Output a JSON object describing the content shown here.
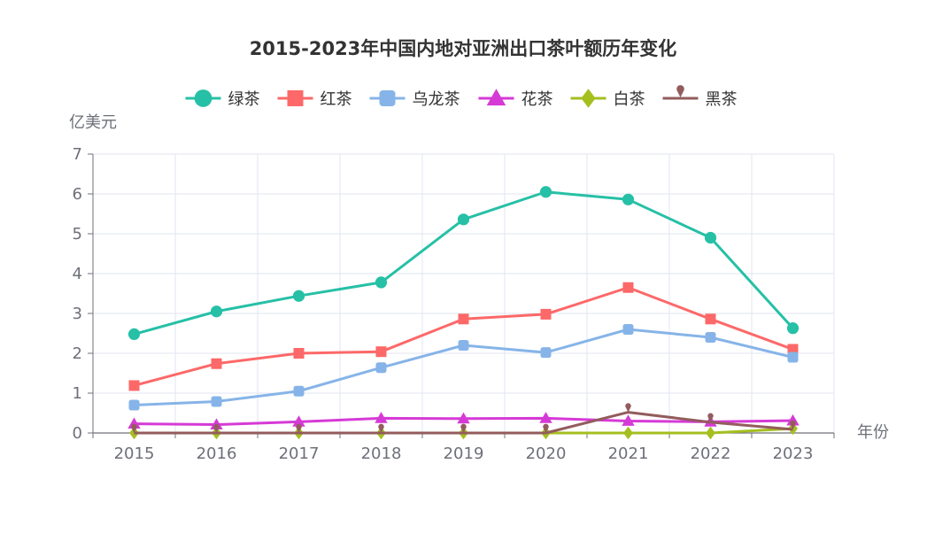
{
  "chart_data": {
    "type": "line",
    "title": "2015-2023年中国内地对亚洲出口茶叶额历年变化",
    "ylabel": "亿美元",
    "xlabel": "年份",
    "categories": [
      "2015",
      "2016",
      "2017",
      "2018",
      "2019",
      "2020",
      "2021",
      "2022",
      "2023"
    ],
    "ylim": [
      0,
      7
    ],
    "yticks": [
      0,
      1,
      2,
      3,
      4,
      5,
      6,
      7
    ],
    "grid": true,
    "legend_position": "top-center",
    "series": [
      {
        "name": "绿茶",
        "color": "#26c0a6",
        "marker": "circle",
        "values": [
          2.48,
          3.05,
          3.44,
          3.78,
          5.36,
          6.05,
          5.86,
          4.9,
          2.63
        ]
      },
      {
        "name": "红茶",
        "color": "#fd6868",
        "marker": "square",
        "values": [
          1.19,
          1.74,
          2.0,
          2.04,
          2.86,
          2.98,
          3.65,
          2.86,
          2.1
        ]
      },
      {
        "name": "乌龙茶",
        "color": "#86b4e8",
        "marker": "roundRect",
        "values": [
          0.7,
          0.79,
          1.05,
          1.64,
          2.2,
          2.02,
          2.6,
          2.4,
          1.9
        ]
      },
      {
        "name": "花茶",
        "color": "#d63ad6",
        "marker": "triangle",
        "values": [
          0.23,
          0.21,
          0.28,
          0.37,
          0.36,
          0.37,
          0.3,
          0.28,
          0.31
        ]
      },
      {
        "name": "白茶",
        "color": "#a5bf1f",
        "marker": "diamond",
        "values": [
          0.0,
          0.0,
          0.0,
          0.0,
          0.0,
          0.0,
          0.0,
          0.0,
          0.11
        ]
      },
      {
        "name": "黑茶",
        "color": "#935c5c",
        "marker": "pin",
        "values": [
          0.0,
          0.0,
          0.0,
          0.0,
          0.0,
          0.0,
          0.52,
          0.27,
          0.09
        ]
      }
    ]
  }
}
